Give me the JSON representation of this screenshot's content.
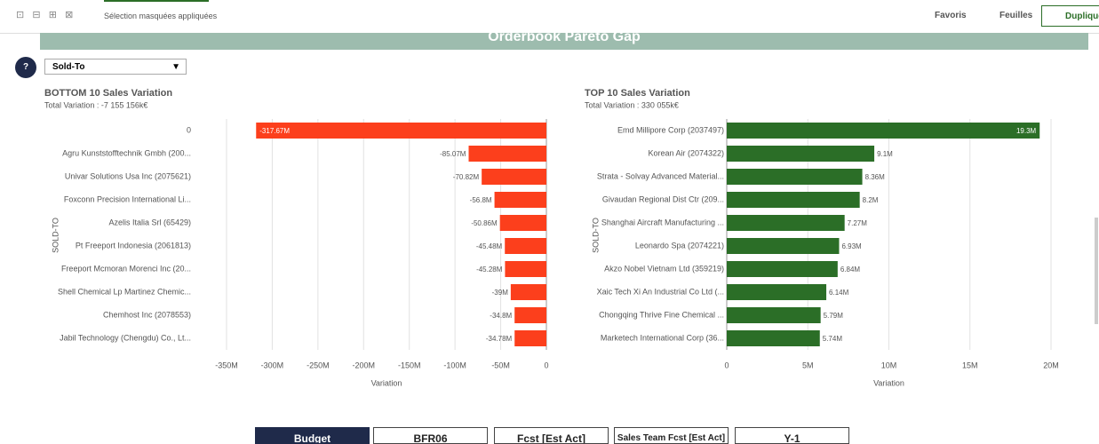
{
  "toolbar": {
    "selection": "Sélection masquées appliquées",
    "favorites": "Favoris",
    "sheets": "Feuilles",
    "duplicate": "Dupliquer"
  },
  "banner": {
    "title": "Orderbook Pareto Gap"
  },
  "filter": {
    "help": "?",
    "dropdown": "Sold-To"
  },
  "chart_data": [
    {
      "type": "hbar",
      "title": "BOTTOM 10 Sales Variation",
      "subtitle": "Total Variation : -7 155 156k€",
      "y_label": "SOLD-TO",
      "x_label": "Variation",
      "color": "#fc3f1c",
      "grid": true,
      "categories": [
        "0",
        "Agru Kunststofftechnik Gmbh (200...",
        "Univar Solutions Usa Inc (2075621)",
        "Foxconn Precision International Li...",
        "Azelis Italia Srl (65429)",
        "Pt Freeport Indonesia (2061813)",
        "Freeport Mcmoran Morenci Inc (20...",
        "Shell Chemical Lp Martinez Chemic...",
        "Chemhost Inc (2078553)",
        "Jabil Technology (Chengdu) Co., Lt..."
      ],
      "values": [
        -317.67,
        -85.07,
        -70.82,
        -56.8,
        -50.86,
        -45.48,
        -45.28,
        -39,
        -34.8,
        -34.78
      ],
      "value_labels": [
        "-317.67M",
        "-85.07M",
        "-70.82M",
        "-56.8M",
        "-50.86M",
        "-45.48M",
        "-45.28M",
        "-39M",
        "-34.8M",
        "-34.78M"
      ],
      "xlim": [
        -350,
        0
      ],
      "xticks": [
        {
          "value": -350,
          "label": "-350M"
        },
        {
          "value": -300,
          "label": "-300M"
        },
        {
          "value": -250,
          "label": "-250M"
        },
        {
          "value": -200,
          "label": "-200M"
        },
        {
          "value": -150,
          "label": "-150M"
        },
        {
          "value": -100,
          "label": "-100M"
        },
        {
          "value": -50,
          "label": "-50M"
        },
        0
      ]
    },
    {
      "type": "hbar",
      "title": "TOP 10 Sales Variation",
      "subtitle": "Total Variation : 330 055k€",
      "y_label": "SOLD-TO",
      "x_label": "Variation",
      "color": "#2b6e27",
      "grid": true,
      "categories": [
        "Emd Millipore Corp (2037497)",
        "Korean Air (2074322)",
        "Strata - Solvay Advanced Material...",
        "Givaudan Regional Dist Ctr (209...",
        "Shanghai Aircraft Manufacturing ...",
        "Leonardo Spa (2074221)",
        "Akzo Nobel Vietnam Ltd (359219)",
        "Xaic Tech Xi An Industrial Co Ltd (...",
        "Chongqing Thrive Fine Chemical ...",
        "Marketech International Corp (36..."
      ],
      "values": [
        19.3,
        9.1,
        8.36,
        8.2,
        7.27,
        6.93,
        6.84,
        6.14,
        5.79,
        5.74
      ],
      "value_labels": [
        "19.3M",
        "9.1M",
        "8.36M",
        "8.2M",
        "7.27M",
        "6.93M",
        "6.84M",
        "6.14M",
        "5.79M",
        "5.74M"
      ],
      "xlim": [
        0,
        20
      ],
      "xticks": [
        0,
        {
          "value": 5,
          "label": "5M"
        },
        {
          "value": 10,
          "label": "10M"
        },
        {
          "value": 15,
          "label": "15M"
        },
        {
          "value": 20,
          "label": "20M"
        }
      ]
    }
  ],
  "buttons": [
    "Budget",
    "BFR06",
    "Fcst [Est Act]",
    "Sales Team Fcst [Est Act]",
    "Y-1"
  ]
}
